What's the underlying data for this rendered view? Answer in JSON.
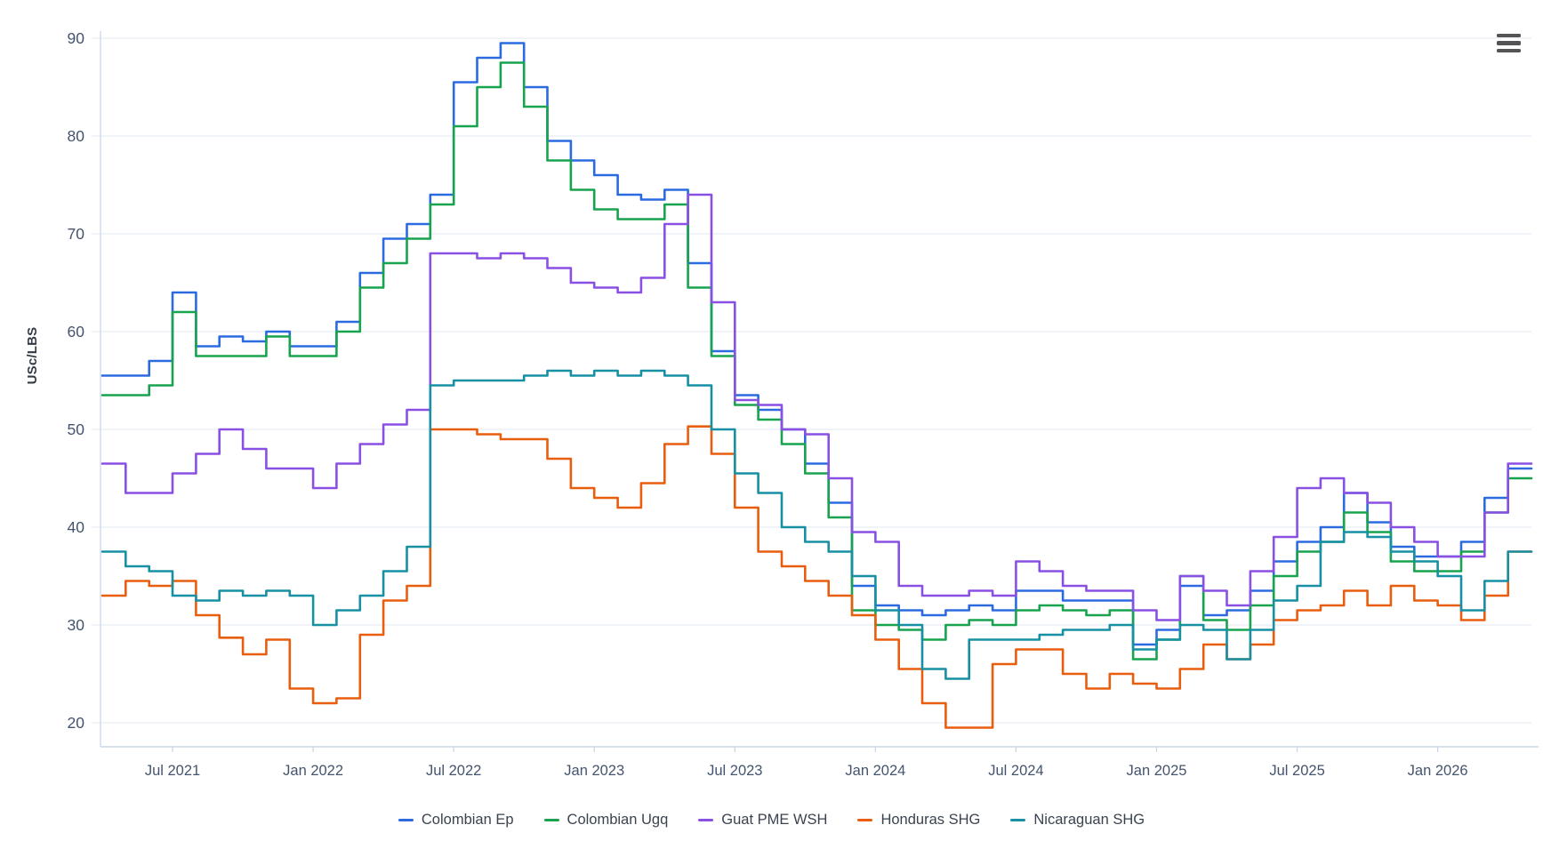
{
  "chart": {
    "menu_icon": "hamburger-menu-icon",
    "background": "#ffffff",
    "grid_color": "#e7ecf3",
    "axis_line_color": "#ccd6e8",
    "tick_label_color": "#44546e",
    "legend_text_color": "#3a434f"
  },
  "chart_data": {
    "type": "line",
    "step": true,
    "title": "",
    "xlabel": "",
    "ylabel": "USc/LBS",
    "grid": "horizontal",
    "legend_position": "bottom",
    "ylim": [
      17.5,
      91
    ],
    "y_ticks": [
      20,
      30,
      40,
      50,
      60,
      70,
      80,
      90
    ],
    "x_tick_labels": [
      "Jul 2021",
      "Jan 2022",
      "Jul 2022",
      "Jan 2023",
      "Jul 2023",
      "Jan 2024",
      "Jul 2024",
      "Jan 2025",
      "Jul 2025",
      "Jan 2026"
    ],
    "x": [
      "Apr 2021",
      "May 2021",
      "Jun 2021",
      "Jul 2021",
      "Aug 2021",
      "Sep 2021",
      "Oct 2021",
      "Nov 2021",
      "Dec 2021",
      "Jan 2022",
      "Feb 2022",
      "Mar 2022",
      "Apr 2022",
      "May 2022",
      "Jun 2022",
      "Jul 2022",
      "Aug 2022",
      "Sep 2022",
      "Oct 2022",
      "Nov 2022",
      "Dec 2022",
      "Jan 2023",
      "Feb 2023",
      "Mar 2023",
      "Apr 2023",
      "May 2023",
      "Jun 2023",
      "Jul 2023",
      "Aug 2023",
      "Sep 2023",
      "Oct 2023",
      "Nov 2023",
      "Dec 2023",
      "Jan 2024",
      "Feb 2024",
      "Mar 2024",
      "Apr 2024",
      "May 2024",
      "Jun 2024",
      "Jul 2024",
      "Aug 2024",
      "Sep 2024",
      "Oct 2024",
      "Nov 2024",
      "Dec 2024",
      "Jan 2025",
      "Feb 2025",
      "Mar 2025",
      "Apr 2025",
      "May 2025",
      "Jun 2025",
      "Jul 2025",
      "Aug 2025",
      "Sep 2025",
      "Oct 2025",
      "Nov 2025",
      "Dec 2025",
      "Jan 2026",
      "Feb 2026",
      "Mar 2026",
      "Apr 2026"
    ],
    "series": [
      {
        "name": "Colombian Ep",
        "color": "#2b6bdf",
        "values": [
          55.5,
          55.5,
          57,
          64,
          58.5,
          59.5,
          59,
          60,
          58.5,
          58.5,
          61,
          66,
          69.5,
          71,
          74,
          85.5,
          88,
          89.5,
          85,
          79.5,
          77.5,
          76,
          74,
          73.5,
          74.5,
          67,
          58,
          53.5,
          52,
          50,
          46.5,
          42.5,
          34,
          32,
          31.5,
          31,
          31.5,
          32,
          31.5,
          33.5,
          33.5,
          32.5,
          32.5,
          32.5,
          28,
          29.5,
          34,
          31,
          31.5,
          33.5,
          36.5,
          38.5,
          40,
          43.5,
          40.5,
          38,
          37,
          37,
          38.5,
          43,
          46
        ]
      },
      {
        "name": "Colombian Ugq",
        "color": "#18a34e",
        "values": [
          53.5,
          53.5,
          54.5,
          62,
          57.5,
          57.5,
          57.5,
          59.5,
          57.5,
          57.5,
          60,
          64.5,
          67,
          69.5,
          73,
          81,
          85,
          87.5,
          83,
          77.5,
          74.5,
          72.5,
          71.5,
          71.5,
          73,
          64.5,
          57.5,
          52.5,
          51,
          48.5,
          45.5,
          41,
          31.5,
          30,
          29.5,
          28.5,
          30,
          30.5,
          30,
          31.5,
          32,
          31.5,
          31,
          31.5,
          26.5,
          28.5,
          35,
          30.5,
          29.5,
          32,
          35,
          37.5,
          38.5,
          41.5,
          39.5,
          36.5,
          35.5,
          35.5,
          37.5,
          41.5,
          45
        ]
      },
      {
        "name": "Guat PME WSH",
        "color": "#8a50e4",
        "values": [
          46.5,
          43.5,
          43.5,
          45.5,
          47.5,
          50,
          48,
          46,
          46,
          44,
          46.5,
          48.5,
          50.5,
          52,
          68,
          68,
          67.5,
          68,
          67.5,
          66.5,
          65,
          64.5,
          64,
          65.5,
          71,
          74,
          63,
          53,
          52.5,
          50,
          49.5,
          45,
          39.5,
          38.5,
          34,
          33,
          33,
          33.5,
          33,
          36.5,
          35.5,
          34,
          33.5,
          33.5,
          31.5,
          30.5,
          35,
          33.5,
          32,
          35.5,
          39,
          44,
          45,
          43.5,
          42.5,
          40,
          38.5,
          37,
          37,
          41.5,
          46.5
        ]
      },
      {
        "name": "Honduras SHG",
        "color": "#e85d0e",
        "values": [
          33,
          34.5,
          34,
          34.5,
          31,
          28.7,
          27,
          28.5,
          23.5,
          22,
          22.5,
          29,
          32.5,
          34,
          50,
          50,
          49.5,
          49,
          49,
          47,
          44,
          43,
          42,
          44.5,
          48.5,
          50.3,
          47.5,
          42,
          37.5,
          36,
          34.5,
          33,
          31,
          28.5,
          25.5,
          22,
          19.5,
          19.5,
          26,
          27.5,
          27.5,
          25,
          23.5,
          25,
          24,
          23.5,
          25.5,
          28,
          26.5,
          28,
          30.5,
          31.5,
          32,
          33.5,
          32,
          34,
          32.5,
          32,
          30.5,
          33,
          37.5
        ]
      },
      {
        "name": "Nicaraguan SHG",
        "color": "#1790a3",
        "values": [
          37.5,
          36,
          35.5,
          33,
          32.5,
          33.5,
          33,
          33.5,
          33,
          30,
          31.5,
          33,
          35.5,
          38,
          54.5,
          55,
          55,
          55,
          55.5,
          56,
          55.5,
          56,
          55.5,
          56,
          55.5,
          54.5,
          50,
          45.5,
          43.5,
          40,
          38.5,
          37.5,
          35,
          31.5,
          30,
          25.5,
          24.5,
          28.5,
          28.5,
          28.5,
          29,
          29.5,
          29.5,
          30,
          27.5,
          28.5,
          30,
          29.5,
          26.5,
          29.5,
          32.5,
          34,
          38.5,
          39.5,
          39,
          37.5,
          36.5,
          35,
          31.5,
          34.5,
          37.5
        ]
      }
    ]
  }
}
